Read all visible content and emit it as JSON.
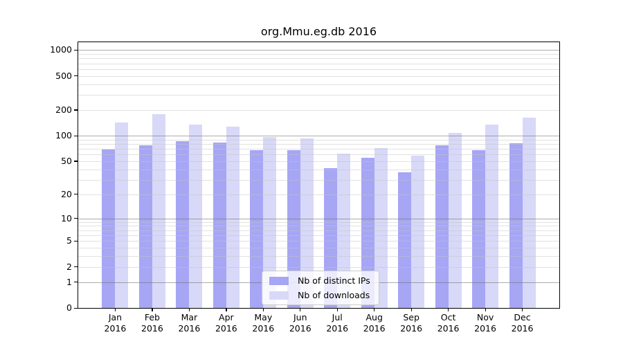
{
  "chart_data": {
    "type": "bar",
    "title": "org.Mmu.eg.db 2016",
    "year": "2016",
    "categories": [
      "Jan",
      "Feb",
      "Mar",
      "Apr",
      "May",
      "Jun",
      "Jul",
      "Aug",
      "Sep",
      "Oct",
      "Nov",
      "Dec"
    ],
    "series": [
      {
        "name": "Nb of distinct IPs",
        "color": "#a6a6f5",
        "values": [
          69,
          77,
          86,
          83,
          67,
          67,
          41,
          55,
          37,
          77,
          68,
          82
        ]
      },
      {
        "name": "Nb of downloads",
        "color": "#d8d8f8",
        "values": [
          143,
          178,
          135,
          128,
          97,
          93,
          62,
          72,
          58,
          107,
          134,
          163
        ]
      }
    ],
    "yscale": "log1p",
    "yticks": [
      0,
      1,
      2,
      5,
      10,
      20,
      50,
      100,
      200,
      500,
      1000
    ],
    "major_grid_values": [
      1,
      10,
      100,
      1000
    ],
    "ylim": [
      0,
      1260
    ],
    "xlabel": "",
    "ylabel": "",
    "grid": true,
    "legend_position": "lower center"
  },
  "colors": {
    "background": "#ffffff",
    "axis": "#000000",
    "major_grid": "#9b9b9b",
    "minor_grid": "#dedede"
  }
}
